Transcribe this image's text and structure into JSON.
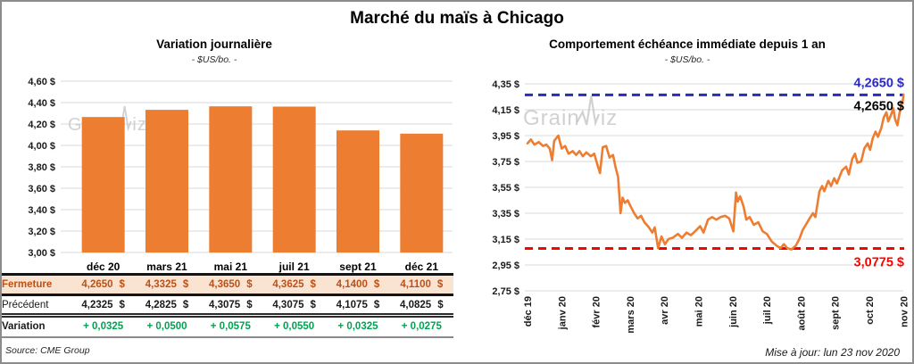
{
  "header": {
    "title": "Marché du maïs à Chicago"
  },
  "watermark": {
    "text": "GrainWiz",
    "part1": "Grain",
    "part2": "iz"
  },
  "colors": {
    "orange": "#ED7D31",
    "green": "#00A351",
    "peach_row_bg": "#FBE3D2",
    "fermeture_text": "#BE5014",
    "blue": "#2B2BC0",
    "red": "#FF0000",
    "grid": "#D9D9D9"
  },
  "chart_data": [
    {
      "type": "bar",
      "title": "Variation journalière",
      "subtitle": "- $US/bo. -",
      "categories": [
        "déc 20",
        "mars 21",
        "mai 21",
        "juil 21",
        "sept 21",
        "déc 21"
      ],
      "values": [
        4.265,
        4.3325,
        4.365,
        4.3625,
        4.14,
        4.11
      ],
      "ylim": [
        3.0,
        4.6
      ],
      "yticks": [
        {
          "value": 4.6,
          "label": "4,60 $"
        },
        {
          "value": 4.4,
          "label": "4,40 $"
        },
        {
          "value": 4.2,
          "label": "4,20 $"
        },
        {
          "value": 4.0,
          "label": "4,00 $"
        },
        {
          "value": 3.8,
          "label": "3,80 $"
        },
        {
          "value": 3.6,
          "label": "3,60 $"
        },
        {
          "value": 3.4,
          "label": "3,40 $"
        },
        {
          "value": 3.2,
          "label": "3,20 $"
        },
        {
          "value": 3.0,
          "label": "3,00 $"
        }
      ],
      "grid": true
    },
    {
      "type": "line",
      "title": "Comportement échéance immédiate depuis 1 an",
      "subtitle": "- $US/bo. -",
      "x_labels": [
        "déc 19",
        "janv 20",
        "févr 20",
        "mars 20",
        "avr 20",
        "mai 20",
        "juin 20",
        "juil 20",
        "août 20",
        "sept 20",
        "oct 20",
        "nov 20"
      ],
      "ylim": [
        2.75,
        4.35
      ],
      "yticks": [
        {
          "value": 4.35,
          "label": "4,35 $"
        },
        {
          "value": 4.15,
          "label": "4,15 $"
        },
        {
          "value": 3.95,
          "label": "3,95 $"
        },
        {
          "value": 3.75,
          "label": "3,75 $"
        },
        {
          "value": 3.55,
          "label": "3,55 $"
        },
        {
          "value": 3.35,
          "label": "3,35 $"
        },
        {
          "value": 3.15,
          "label": "3,15 $"
        },
        {
          "value": 2.95,
          "label": "2,95 $"
        },
        {
          "value": 2.75,
          "label": "2,75 $"
        }
      ],
      "ref_lines": [
        {
          "value": 4.265,
          "label": "4,2650 $",
          "color": "#2B2BC0"
        },
        {
          "value": 3.0775,
          "label": "3,0775 $",
          "color": "#FF0000"
        }
      ],
      "last_label": {
        "text": "4,2650 $",
        "color": "#000000",
        "value": 4.265
      },
      "points": [
        [
          0.0,
          3.89
        ],
        [
          0.1,
          3.92
        ],
        [
          0.2,
          3.88
        ],
        [
          0.33,
          3.9
        ],
        [
          0.45,
          3.87
        ],
        [
          0.55,
          3.88
        ],
        [
          0.65,
          3.85
        ],
        [
          0.72,
          3.76
        ],
        [
          0.78,
          3.91
        ],
        [
          0.9,
          3.95
        ],
        [
          1.0,
          3.85
        ],
        [
          1.1,
          3.87
        ],
        [
          1.2,
          3.81
        ],
        [
          1.32,
          3.83
        ],
        [
          1.42,
          3.8
        ],
        [
          1.52,
          3.83
        ],
        [
          1.62,
          3.79
        ],
        [
          1.72,
          3.82
        ],
        [
          1.85,
          3.79
        ],
        [
          1.95,
          3.81
        ],
        [
          2.05,
          3.72
        ],
        [
          2.12,
          3.66
        ],
        [
          2.2,
          3.86
        ],
        [
          2.3,
          3.87
        ],
        [
          2.4,
          3.78
        ],
        [
          2.5,
          3.8
        ],
        [
          2.58,
          3.7
        ],
        [
          2.65,
          3.63
        ],
        [
          2.72,
          3.35
        ],
        [
          2.78,
          3.47
        ],
        [
          2.85,
          3.43
        ],
        [
          2.93,
          3.45
        ],
        [
          3.02,
          3.4
        ],
        [
          3.12,
          3.35
        ],
        [
          3.22,
          3.31
        ],
        [
          3.32,
          3.33
        ],
        [
          3.42,
          3.28
        ],
        [
          3.55,
          3.24
        ],
        [
          3.65,
          3.2
        ],
        [
          3.72,
          3.24
        ],
        [
          3.82,
          3.08
        ],
        [
          3.92,
          3.17
        ],
        [
          4.02,
          3.11
        ],
        [
          4.12,
          3.15
        ],
        [
          4.25,
          3.16
        ],
        [
          4.4,
          3.19
        ],
        [
          4.52,
          3.16
        ],
        [
          4.65,
          3.2
        ],
        [
          4.78,
          3.18
        ],
        [
          4.9,
          3.21
        ],
        [
          5.05,
          3.25
        ],
        [
          5.15,
          3.2
        ],
        [
          5.28,
          3.3
        ],
        [
          5.4,
          3.32
        ],
        [
          5.52,
          3.3
        ],
        [
          5.65,
          3.32
        ],
        [
          5.78,
          3.33
        ],
        [
          5.9,
          3.31
        ],
        [
          6.02,
          3.21
        ],
        [
          6.1,
          3.51
        ],
        [
          6.15,
          3.44
        ],
        [
          6.22,
          3.48
        ],
        [
          6.32,
          3.4
        ],
        [
          6.4,
          3.3
        ],
        [
          6.5,
          3.32
        ],
        [
          6.62,
          3.26
        ],
        [
          6.75,
          3.28
        ],
        [
          6.88,
          3.21
        ],
        [
          7.0,
          3.19
        ],
        [
          7.15,
          3.13
        ],
        [
          7.28,
          3.1
        ],
        [
          7.4,
          3.08
        ],
        [
          7.5,
          3.11
        ],
        [
          7.6,
          3.08
        ],
        [
          7.72,
          3.07
        ],
        [
          7.85,
          3.1
        ],
        [
          7.95,
          3.15
        ],
        [
          8.05,
          3.22
        ],
        [
          8.14,
          3.26
        ],
        [
          8.25,
          3.31
        ],
        [
          8.35,
          3.35
        ],
        [
          8.42,
          3.32
        ],
        [
          8.54,
          3.52
        ],
        [
          8.62,
          3.56
        ],
        [
          8.68,
          3.52
        ],
        [
          8.8,
          3.6
        ],
        [
          8.88,
          3.56
        ],
        [
          8.97,
          3.62
        ],
        [
          9.05,
          3.58
        ],
        [
          9.2,
          3.68
        ],
        [
          9.32,
          3.71
        ],
        [
          9.4,
          3.65
        ],
        [
          9.5,
          3.77
        ],
        [
          9.58,
          3.81
        ],
        [
          9.65,
          3.74
        ],
        [
          9.76,
          3.75
        ],
        [
          9.85,
          3.85
        ],
        [
          9.95,
          3.89
        ],
        [
          10.02,
          3.84
        ],
        [
          10.1,
          3.93
        ],
        [
          10.18,
          3.98
        ],
        [
          10.25,
          3.94
        ],
        [
          10.35,
          4.01
        ],
        [
          10.42,
          4.09
        ],
        [
          10.5,
          4.13
        ],
        [
          10.55,
          4.06
        ],
        [
          10.62,
          4.1
        ],
        [
          10.7,
          4.16
        ],
        [
          10.75,
          4.08
        ],
        [
          10.82,
          4.03
        ],
        [
          10.88,
          4.12
        ],
        [
          10.93,
          4.18
        ],
        [
          10.97,
          4.21
        ],
        [
          11.0,
          4.265
        ]
      ],
      "grid": true
    }
  ],
  "table": {
    "col_headers": [
      "déc 20",
      "mars 21",
      "mai 21",
      "juil 21",
      "sept 21",
      "déc 21"
    ],
    "rows": [
      {
        "label": "Fermeture",
        "style": "fermeture",
        "unit": "$",
        "values": [
          "4,2650",
          "4,3325",
          "4,3650",
          "4,3625",
          "4,1400",
          "4,1100"
        ]
      },
      {
        "label": "Précédent",
        "style": "precedent",
        "unit": "$",
        "values": [
          "4,2325",
          "4,2825",
          "4,3075",
          "4,3075",
          "4,1075",
          "4,0825"
        ]
      },
      {
        "label": "Variation",
        "style": "variation",
        "unit": "",
        "values": [
          "+ 0,0325",
          "+ 0,0500",
          "+ 0,0575",
          "+ 0,0550",
          "+ 0,0325",
          "+ 0,0275"
        ]
      }
    ],
    "source": "Source: CME Group"
  },
  "footer": {
    "update": "Mise à jour: lun 23 nov 2020"
  }
}
